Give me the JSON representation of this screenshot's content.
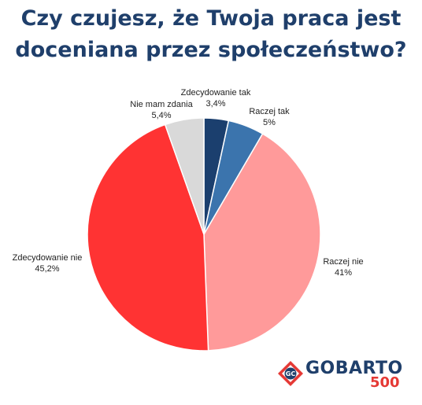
{
  "title_lines": [
    "Czy czujesz, że Twoja praca jest",
    "doceniana przez społeczeństwo?"
  ],
  "chart_data": {
    "type": "pie",
    "title": "Czy czujesz, że Twoja praca jest doceniana przez społeczeństwo?",
    "slices": [
      {
        "label": "Zdecydowanie tak",
        "value": 3.4,
        "value_label": "3,4%",
        "color": "#1b3f6e"
      },
      {
        "label": "Raczej tak",
        "value": 5,
        "value_label": "5%",
        "color": "#3b74ad"
      },
      {
        "label": "Raczej nie",
        "value": 41,
        "value_label": "41%",
        "color": "#ff9a9a"
      },
      {
        "label": "Zdecydowanie nie",
        "value": 45.2,
        "value_label": "45,2%",
        "color": "#ff3333"
      },
      {
        "label": "Nie mam zdania",
        "value": 5.4,
        "value_label": "5,4%",
        "color": "#d9d9d9"
      }
    ],
    "start": "12 o'clock",
    "direction": "clockwise"
  },
  "logo": {
    "word": "GOBARTO",
    "number": "500",
    "badge_text": "GC"
  }
}
